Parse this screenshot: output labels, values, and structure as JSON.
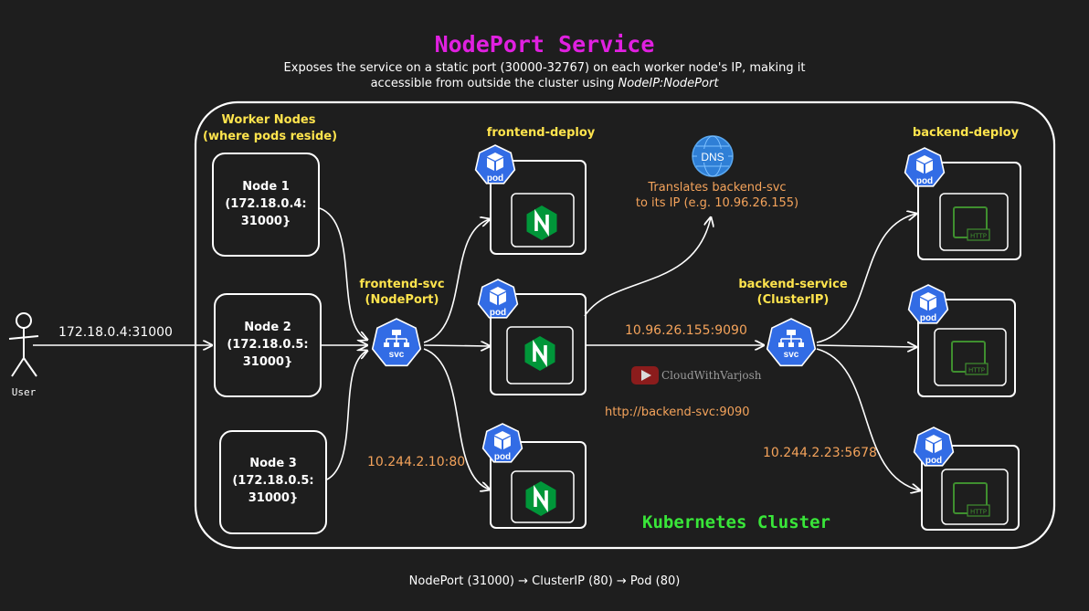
{
  "title": "NodePort Service",
  "subtitle": {
    "line1": "Exposes the service on a static port (30000-32767) on each worker node's IP, making it",
    "line2_prefix": "accessible from outside the cluster using ",
    "line2_italic": "NodeIP:NodePort"
  },
  "user": {
    "label": "User",
    "request": "172.18.0.4:31000"
  },
  "worker_nodes": {
    "heading_line1": "Worker Nodes",
    "heading_line2": "(where pods reside)",
    "nodes": [
      {
        "name": "Node 1",
        "ip": "(172.18.0.4:",
        "port": "31000}"
      },
      {
        "name": "Node 2",
        "ip": "(172.18.0.5:",
        "port": "31000}"
      },
      {
        "name": "Node 3",
        "ip": "(172.18.0.5:",
        "port": "31000}"
      }
    ]
  },
  "frontend_svc": {
    "name": "frontend-svc",
    "type": "(NodePort)",
    "icon_label": "svc"
  },
  "frontend_deploy": {
    "name": "frontend-deploy",
    "pod_label": "pod",
    "pod_endpoint": "10.244.2.10:80"
  },
  "dns": {
    "icon_label": "DNS",
    "note_line1": "Translates backend-svc",
    "note_line2": "to its IP (e.g. 10.96.26.155)"
  },
  "cluster_ip_call": "10.96.26.155:9090",
  "http_call": "http://backend-svc:9090",
  "watermark": "CloudWithVarjosh",
  "backend_service": {
    "name": "backend-service",
    "type": "(ClusterIP)",
    "icon_label": "svc"
  },
  "backend_deploy": {
    "name": "backend-deploy",
    "pod_label": "pod",
    "container_label": "HTTP",
    "pod_endpoint": "10.244.2.23:5678"
  },
  "cluster_label": "Kubernetes Cluster",
  "footer": "NodePort (31000) → ClusterIP (80) → Pod (80)",
  "colors": {
    "background": "#1e1e1e",
    "title": "#e020e0",
    "label_yellow": "#ffe44d",
    "label_orange": "#f4a35b",
    "cluster_green": "#39e639",
    "k8s_blue": "#326ce5",
    "nginx_green": "#009639"
  },
  "icons": [
    "user-stick-figure-icon",
    "pod-icon",
    "service-icon",
    "nginx-icon",
    "dns-globe-icon",
    "http-container-icon",
    "youtube-icon"
  ]
}
